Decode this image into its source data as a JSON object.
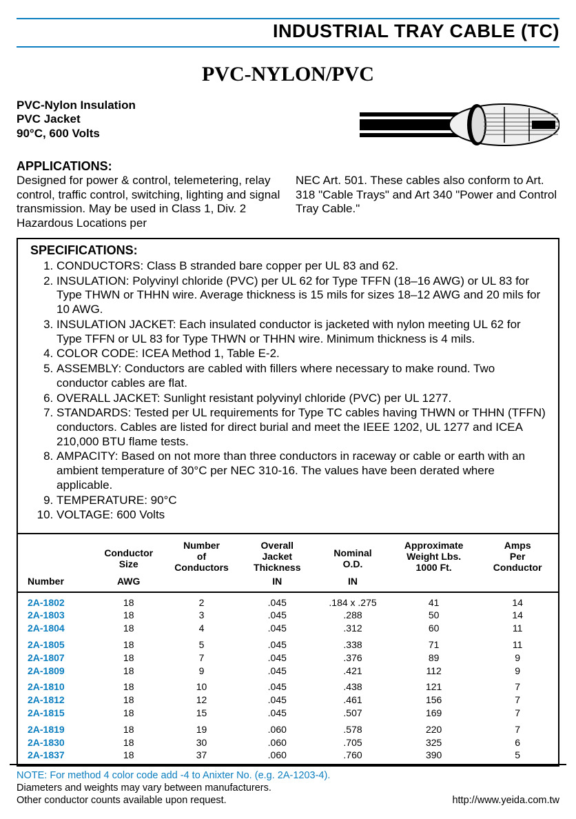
{
  "colors": {
    "accent_blue": "#0b7ebf",
    "text": "#000000",
    "background": "#ffffff",
    "border": "#000000"
  },
  "typography": {
    "body_family": "Arial, Helvetica, sans-serif",
    "title_family": "Times New Roman, serif",
    "header_size_pt": 20,
    "title_size_pt": 22,
    "body_size_pt": 13,
    "table_size_pt": 10.5
  },
  "header": {
    "title": "INDUSTRIAL TRAY CABLE (TC)"
  },
  "title": "PVC-NYLON/PVC",
  "intro": {
    "line1": "PVC-Nylon Insulation",
    "line2": "PVC Jacket",
    "line3": "90°C, 600 Volts"
  },
  "applications": {
    "label": "APPLICATIONS:",
    "col1": "Designed for power & control, telemetering, relay control, traffic control, switching, lighting and signal transmission. May be used in Class 1, Div. 2 Hazardous Locations per",
    "col2": "NEC Art. 501. These cables also conform to Art. 318 \"Cable Trays\" and Art 340 \"Power and Control Tray Cable.\""
  },
  "specifications": {
    "label": "SPECIFICATIONS:",
    "items": [
      "CONDUCTORS: Class B stranded bare copper per UL 83 and 62.",
      "INSULATION: Polyvinyl chloride (PVC) per UL 62 for Type TFFN (18–16 AWG) or UL 83 for Type THWN or THHN wire. Average thickness is 15 mils for sizes 18–12 AWG and 20 mils for 10 AWG.",
      "INSULATION JACKET: Each insulated conductor is jacketed with nylon meeting UL 62 for Type TFFN or UL 83 for Type THWN or THHN wire. Minimum thickness is 4 mils.",
      "COLOR CODE: ICEA Method 1, Table E-2.",
      "ASSEMBLY: Conductors are cabled with fillers where necessary to make round. Two conductor cables are flat.",
      "OVERALL JACKET: Sunlight resistant polyvinyl chloride (PVC) per UL 1277.",
      "STANDARDS: Tested per UL requirements for Type TC cables having THWN or THHN (TFFN) conductors. Cables are listed for direct burial and meet the IEEE 1202, UL 1277 and ICEA 210,000 BTU flame tests.",
      "AMPACITY: Based on not more than three conductors in raceway or cable or earth with an ambient temperature of 30°C per NEC 310-16. The values have been derated where applicable.",
      "TEMPERATURE: 90°C",
      "VOLTAGE: 600 Volts"
    ]
  },
  "table": {
    "columns": [
      {
        "h1": "",
        "h2": "Number",
        "align": "left",
        "width_pct": 14
      },
      {
        "h1": "Conductor Size",
        "h2": "AWG",
        "align": "center",
        "width_pct": 13
      },
      {
        "h1": "Number of Conductors",
        "h2": "",
        "align": "center",
        "width_pct": 14
      },
      {
        "h1": "Overall Jacket Thickness",
        "h2": "IN",
        "align": "center",
        "width_pct": 14
      },
      {
        "h1": "Nominal O.D.",
        "h2": "IN",
        "align": "center",
        "width_pct": 14
      },
      {
        "h1": "Approximate Weight Lbs. 1000 Ft.",
        "h2": "",
        "align": "center",
        "width_pct": 16
      },
      {
        "h1": "Amps Per Conductor",
        "h2": "",
        "align": "center",
        "width_pct": 15
      }
    ],
    "groups": [
      [
        [
          "2A-1802",
          "18",
          "2",
          ".045",
          ".184 x .275",
          "41",
          "14"
        ],
        [
          "2A-1803",
          "18",
          "3",
          ".045",
          ".288",
          "50",
          "14"
        ],
        [
          "2A-1804",
          "18",
          "4",
          ".045",
          ".312",
          "60",
          "11"
        ]
      ],
      [
        [
          "2A-1805",
          "18",
          "5",
          ".045",
          ".338",
          "71",
          "11"
        ],
        [
          "2A-1807",
          "18",
          "7",
          ".045",
          ".376",
          "89",
          "9"
        ],
        [
          "2A-1809",
          "18",
          "9",
          ".045",
          ".421",
          "112",
          "9"
        ]
      ],
      [
        [
          "2A-1810",
          "18",
          "10",
          ".045",
          ".438",
          "121",
          "7"
        ],
        [
          "2A-1812",
          "18",
          "12",
          ".045",
          ".461",
          "156",
          "7"
        ],
        [
          "2A-1815",
          "18",
          "15",
          ".045",
          ".507",
          "169",
          "7"
        ]
      ],
      [
        [
          "2A-1819",
          "18",
          "19",
          ".060",
          ".578",
          "220",
          "7"
        ],
        [
          "2A-1830",
          "18",
          "30",
          ".060",
          ".705",
          "325",
          "6"
        ],
        [
          "2A-1837",
          "18",
          "37",
          ".060",
          ".760",
          "390",
          "5"
        ]
      ]
    ]
  },
  "notes": {
    "line1": "NOTE: For method 4 color code add -4 to Anixter No. (e.g. 2A-1203-4).",
    "line2": "Diameters and weights may vary between manufacturers.",
    "line3": "Other conductor counts available upon request.",
    "url": "http://www.yeida.com.tw"
  }
}
